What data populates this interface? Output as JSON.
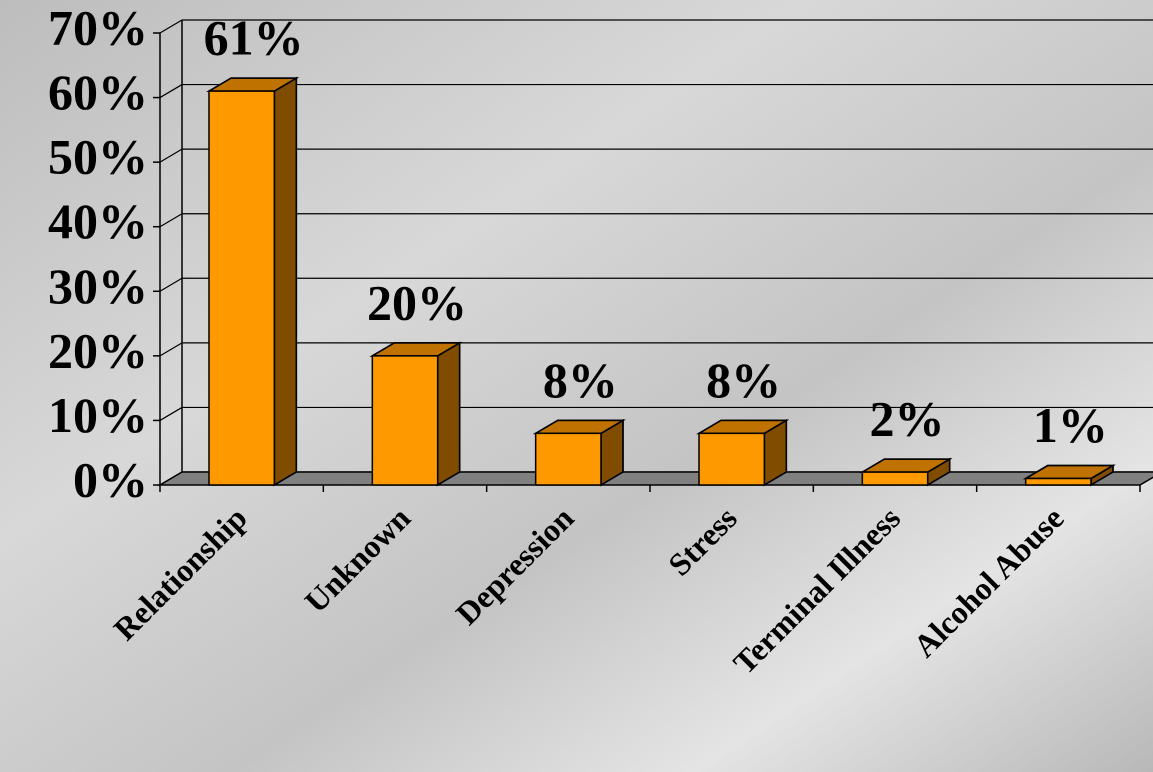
{
  "chart_data": {
    "type": "bar3d",
    "categories": [
      "Relationship",
      "Unknown",
      "Depression",
      "Stress",
      "Terminal Illness",
      "Alcohol Abuse"
    ],
    "values": [
      61,
      20,
      8,
      8,
      2,
      1
    ],
    "value_labels": [
      "61%",
      "20%",
      "8%",
      "8%",
      "2%",
      "1%"
    ],
    "color": "#ff9900",
    "ylim": [
      0,
      70
    ],
    "yticks": [
      {
        "value": 0,
        "label": "0%"
      },
      {
        "value": 10,
        "label": "10%"
      },
      {
        "value": 20,
        "label": "20%"
      },
      {
        "value": 30,
        "label": "30%"
      },
      {
        "value": 40,
        "label": "40%"
      },
      {
        "value": 50,
        "label": "50%"
      },
      {
        "value": 60,
        "label": "60%"
      },
      {
        "value": 70,
        "label": "70%"
      }
    ],
    "grid": true
  }
}
